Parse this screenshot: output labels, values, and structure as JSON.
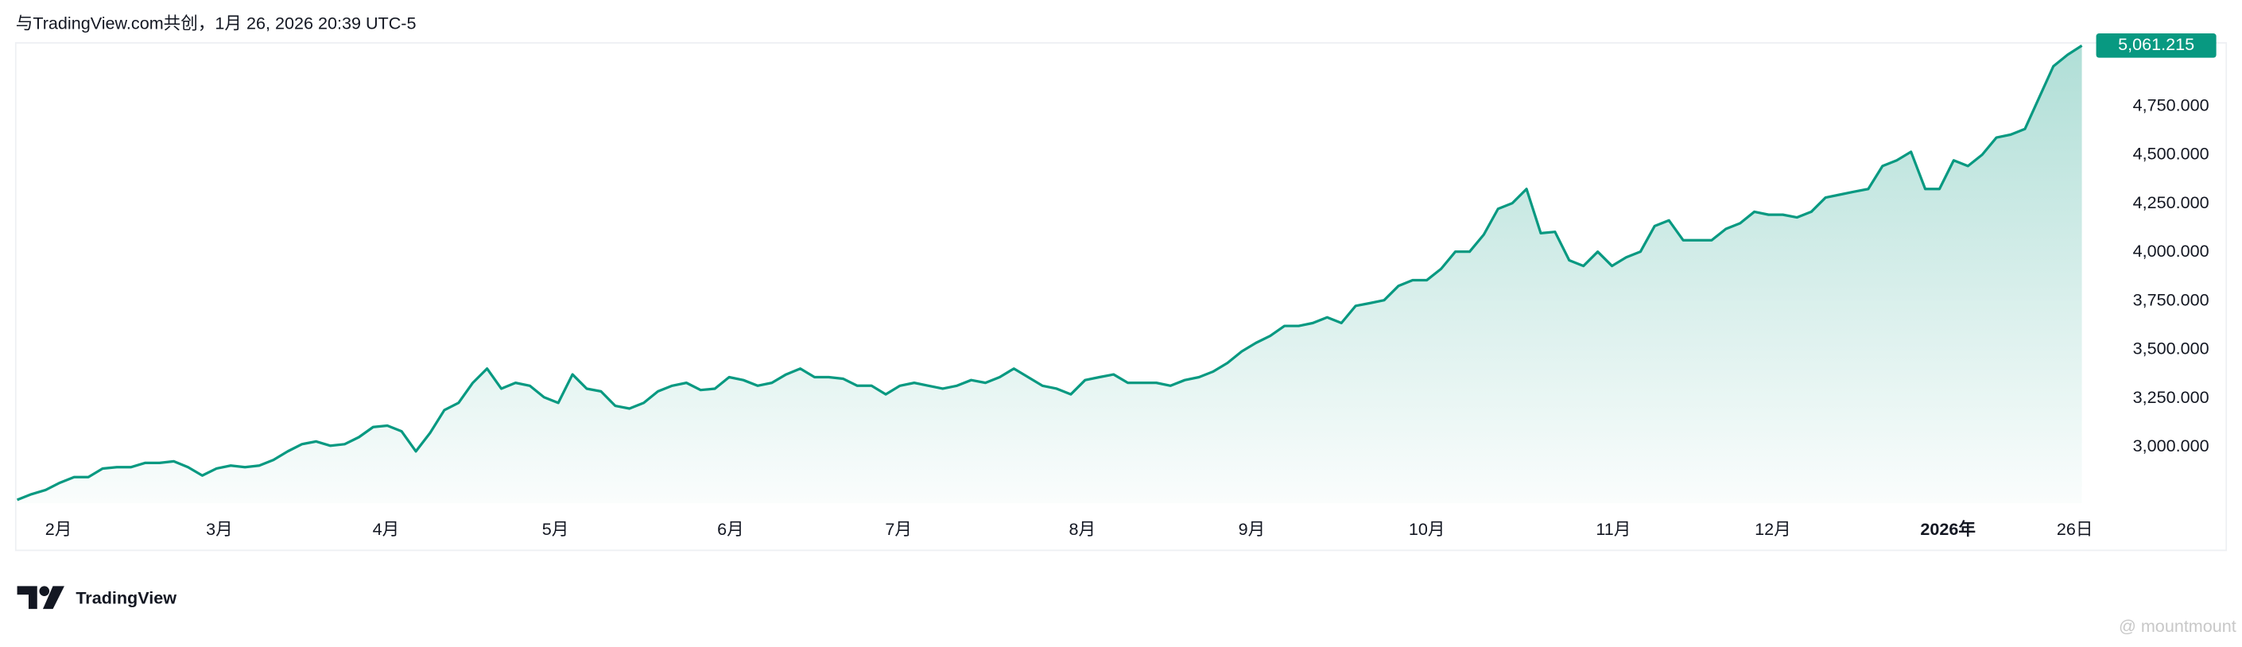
{
  "header": "与TradingView.com共创，1月 26, 2026 20:39 UTC-5",
  "brand": "TradingView",
  "watermark": "@ mountmount",
  "chart_data": {
    "type": "area",
    "color": "#089981",
    "grid": false,
    "values": [
      2729,
      2758,
      2780,
      2817,
      2846,
      2846,
      2890,
      2897,
      2897,
      2919,
      2919,
      2927,
      2897,
      2854,
      2890,
      2905,
      2897,
      2905,
      2934,
      2978,
      3015,
      3029,
      3007,
      3015,
      3051,
      3103,
      3110,
      3081,
      2978,
      3073,
      3190,
      3227,
      3330,
      3403,
      3300,
      3330,
      3315,
      3256,
      3227,
      3373,
      3300,
      3286,
      3212,
      3198,
      3227,
      3286,
      3315,
      3330,
      3293,
      3300,
      3359,
      3344,
      3315,
      3330,
      3373,
      3403,
      3359,
      3359,
      3351,
      3315,
      3315,
      3271,
      3315,
      3330,
      3315,
      3300,
      3315,
      3344,
      3330,
      3359,
      3403,
      3359,
      3315,
      3300,
      3271,
      3344,
      3359,
      3373,
      3330,
      3330,
      3330,
      3315,
      3344,
      3359,
      3388,
      3432,
      3491,
      3535,
      3571,
      3622,
      3622,
      3637,
      3666,
      3637,
      3725,
      3739,
      3754,
      3827,
      3857,
      3857,
      3915,
      4003,
      4003,
      4091,
      4223,
      4252,
      4325,
      4098,
      4105,
      3959,
      3930,
      4003,
      3930,
      3974,
      4003,
      4135,
      4164,
      4062,
      4062,
      4062,
      4120,
      4149,
      4208,
      4193,
      4193,
      4179,
      4208,
      4281,
      4296,
      4311,
      4325,
      4443,
      4472,
      4516,
      4325,
      4325,
      4472,
      4443,
      4501,
      4589,
      4604,
      4633,
      4794,
      4955,
      5014,
      5061.215
    ],
    "last_value": {
      "value": 5061.215,
      "label": "5,061.215"
    },
    "ylim": [
      2690,
      5075
    ],
    "yticks": [
      {
        "value": 3000,
        "label": "3,000.000"
      },
      {
        "value": 3250,
        "label": "3,250.000"
      },
      {
        "value": 3500,
        "label": "3,500.000"
      },
      {
        "value": 3750,
        "label": "3,750.000"
      },
      {
        "value": 4000,
        "label": "4,000.000"
      },
      {
        "value": 4250,
        "label": "4,250.000"
      },
      {
        "value": 4500,
        "label": "4,500.000"
      },
      {
        "value": 4750,
        "label": "4,750.000"
      }
    ],
    "xlim": [
      0,
      145
    ],
    "xticks": [
      {
        "value": 2.9,
        "label": "2月"
      },
      {
        "value": 14.2,
        "label": "3月"
      },
      {
        "value": 25.9,
        "label": "4月"
      },
      {
        "value": 37.8,
        "label": "5月"
      },
      {
        "value": 50.1,
        "label": "6月"
      },
      {
        "value": 61.9,
        "label": "7月"
      },
      {
        "value": 74.8,
        "label": "8月"
      },
      {
        "value": 86.7,
        "label": "9月"
      },
      {
        "value": 99.0,
        "label": "10月"
      },
      {
        "value": 112.1,
        "label": "11月"
      },
      {
        "value": 123.3,
        "label": "12月"
      },
      {
        "value": 135.6,
        "label": "2026年"
      },
      {
        "value": 144.5,
        "label": "26日"
      }
    ]
  }
}
